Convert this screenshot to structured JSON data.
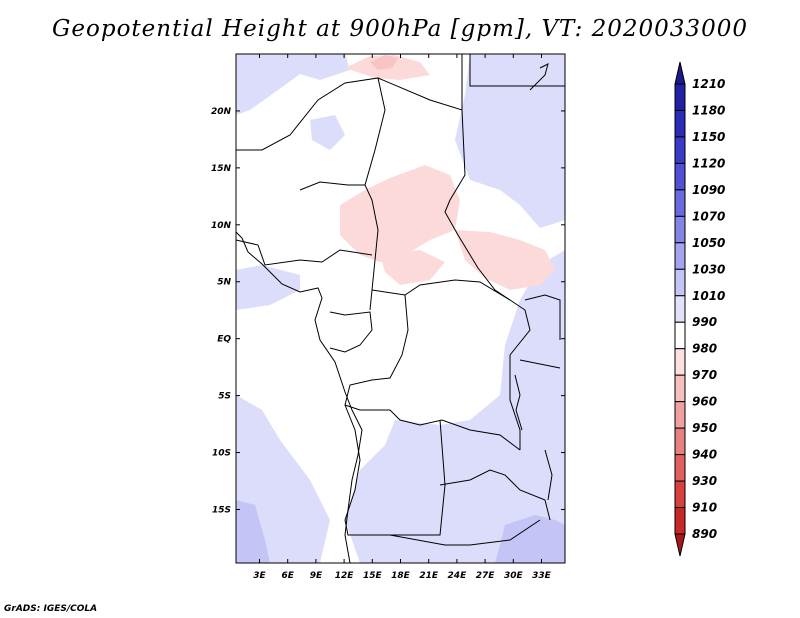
{
  "title": "Geopotential Height at 900hPa [gpm], VT: 2020033000",
  "credit": "GrADS: IGES/COLA",
  "map": {
    "lon_labels": [
      "3E",
      "6E",
      "9E",
      "12E",
      "15E",
      "18E",
      "21E",
      "24E",
      "27E",
      "30E",
      "33E"
    ],
    "lon_values": [
      3,
      6,
      9,
      12,
      15,
      18,
      21,
      24,
      27,
      30,
      33
    ],
    "lat_labels": [
      "20N",
      "15N",
      "10N",
      "5N",
      "EQ",
      "5S",
      "10S",
      "15S"
    ],
    "lat_values": [
      20,
      15,
      10,
      5,
      0,
      -5,
      -10,
      -15
    ],
    "lon_range": [
      0.5,
      35.5
    ],
    "lat_range": [
      -19.7,
      25
    ]
  },
  "colorbar": {
    "labels": [
      "1210",
      "1180",
      "1150",
      "1120",
      "1090",
      "1070",
      "1050",
      "1030",
      "1010",
      "990",
      "980",
      "970",
      "960",
      "950",
      "940",
      "930",
      "910",
      "890"
    ],
    "colors": [
      "#1a1a8c",
      "#2020a4",
      "#2c2cb8",
      "#3a3ac8",
      "#5050d6",
      "#6a6ae0",
      "#8484e8",
      "#a4a4f0",
      "#c4c4f6",
      "#e2e2fa",
      "#ffffff",
      "#fce0e0",
      "#f8c0c0",
      "#f0a0a0",
      "#e88080",
      "#e06060",
      "#d84040",
      "#c82828",
      "#a81818"
    ]
  }
}
